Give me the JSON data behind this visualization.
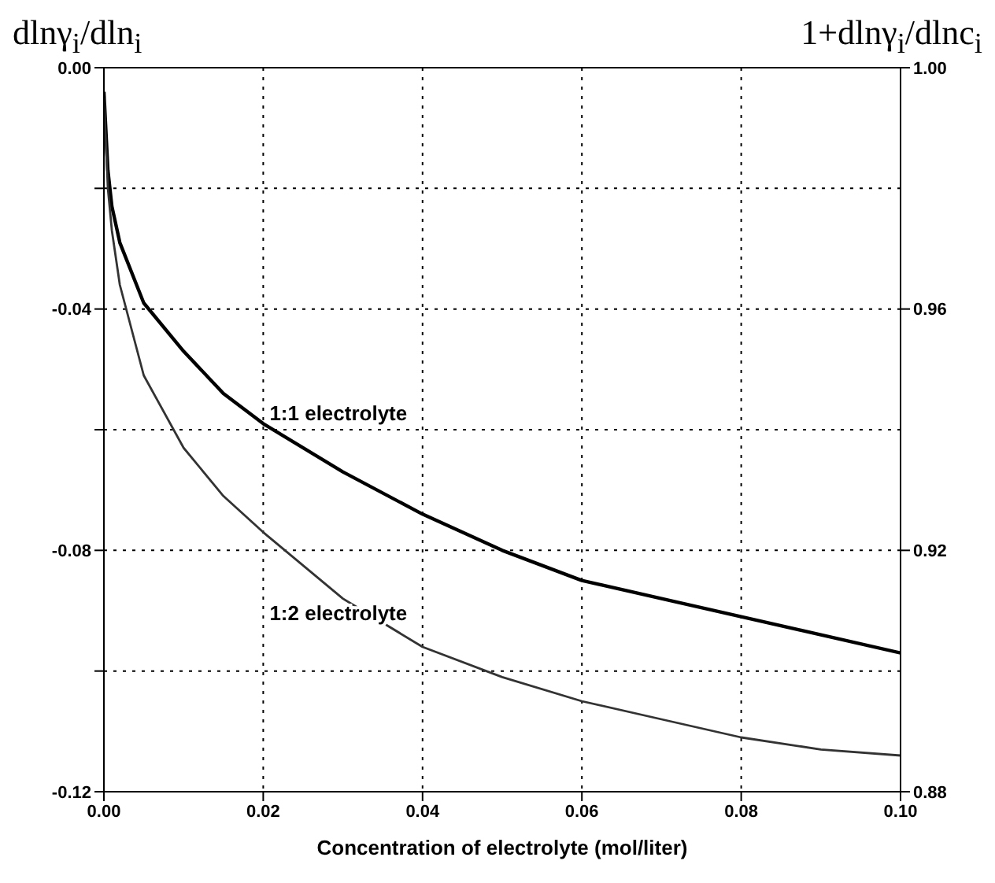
{
  "chart_data": {
    "type": "line",
    "xlabel": "Concentration of electrolyte (mol/liter)",
    "ylabel": "dlnγ$_{i}$/dln$_{i}$",
    "y2label": "1+dlnγ$_{i}$/dlnc$_{i}$",
    "x": [
      0,
      0.0005,
      0.001,
      0.002,
      0.005,
      0.01,
      0.015,
      0.02,
      0.03,
      0.04,
      0.05,
      0.06,
      0.07,
      0.08,
      0.09,
      0.1
    ],
    "series": [
      {
        "name": "1:1 electrolyte",
        "color": "#000000",
        "values": [
          -0.004,
          -0.017,
          -0.023,
          -0.029,
          -0.039,
          -0.047,
          -0.054,
          -0.059,
          -0.067,
          -0.074,
          -0.08,
          -0.085,
          -0.088,
          -0.091,
          -0.094,
          -0.097
        ]
      },
      {
        "name": "1:2 electrolyte",
        "color": "#333333",
        "values": [
          -0.005,
          -0.02,
          -0.027,
          -0.036,
          -0.051,
          -0.063,
          -0.071,
          -0.077,
          -0.088,
          -0.096,
          -0.101,
          -0.105,
          -0.108,
          -0.111,
          -0.113,
          -0.114
        ]
      }
    ],
    "xlim": [
      0,
      0.1
    ],
    "xticks": [
      {
        "value": 0,
        "label": "0.00"
      },
      {
        "value": 0.02,
        "label": "0.02"
      },
      {
        "value": 0.04,
        "label": "0.04"
      },
      {
        "value": 0.06,
        "label": "0.06"
      },
      {
        "value": 0.08,
        "label": "0.08"
      },
      {
        "value": 0.1,
        "label": "0.10"
      }
    ],
    "ylim": [
      -0.12,
      0
    ],
    "yticks": [
      {
        "value": -0.12,
        "label": "-0.12"
      },
      {
        "value": -0.1,
        "label": null
      },
      {
        "value": -0.08,
        "label": "-0.08"
      },
      {
        "value": -0.06,
        "label": null
      },
      {
        "value": -0.04,
        "label": "-0.04"
      },
      {
        "value": -0.02,
        "label": null
      },
      {
        "value": 0,
        "label": "0.00"
      }
    ],
    "y2lim": [
      0.88,
      1.0
    ],
    "y2ticks": [
      {
        "value": 0.88,
        "label": "0.88"
      },
      {
        "value": 0.92,
        "label": "0.92"
      },
      {
        "value": 0.96,
        "label": "0.96"
      },
      {
        "value": 1.0,
        "label": "1.00"
      }
    ],
    "grid": true,
    "legend": false,
    "marker": "none",
    "line_style": "solid"
  }
}
